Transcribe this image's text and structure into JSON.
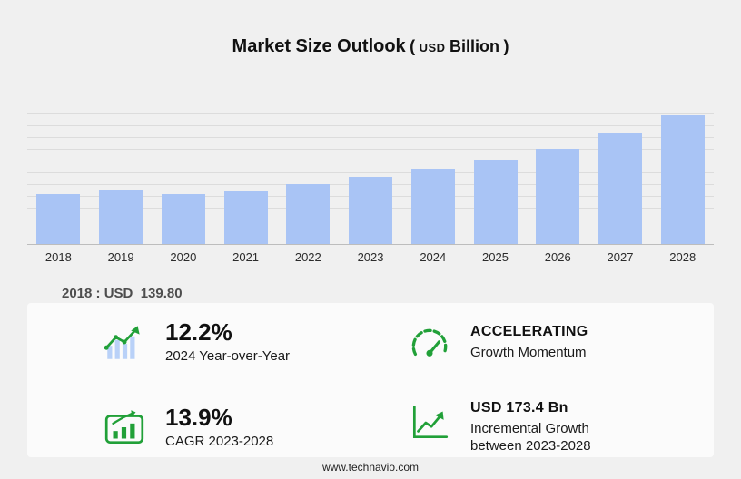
{
  "title": {
    "main": "Market Size Outlook",
    "paren_open": "(",
    "currency": "USD",
    "unit": "Billion",
    "paren_close": ")"
  },
  "chart_data": {
    "type": "bar",
    "title": "Market Size Outlook (USD Billion)",
    "categories": [
      "2018",
      "2019",
      "2020",
      "2021",
      "2022",
      "2023",
      "2024",
      "2025",
      "2026",
      "2027",
      "2028"
    ],
    "values": [
      139.8,
      152.5,
      140.5,
      151.5,
      168.0,
      189.1,
      212.2,
      238.0,
      267.5,
      311.0,
      362.5
    ],
    "xlabel": "",
    "ylabel": "USD Billion",
    "ylim": [
      0,
      370
    ],
    "grid": "horizontal",
    "legend": "none",
    "bar_color": "#a9c4f5",
    "baseline_label": "2018 : USD  139.80"
  },
  "stats": [
    {
      "icon": "bar-growth-icon",
      "value": "12.2%",
      "caption": "2024 Year-over-Year"
    },
    {
      "icon": "gauge-icon",
      "value": "ACCELERATING",
      "caption": "Growth Momentum"
    },
    {
      "icon": "cagr-chart-icon",
      "value": "13.9%",
      "caption": "CAGR 2023-2028"
    },
    {
      "icon": "growth-line-icon",
      "value": "USD 173.4 Bn",
      "caption": "Incremental Growth between 2023-2028"
    }
  ],
  "colors": {
    "bar": "#a9c4f5",
    "accent_green": "#21a038",
    "background": "#f0f0f0",
    "card": "#fbfbfb"
  },
  "footer": {
    "url": "www.technavio.com"
  }
}
